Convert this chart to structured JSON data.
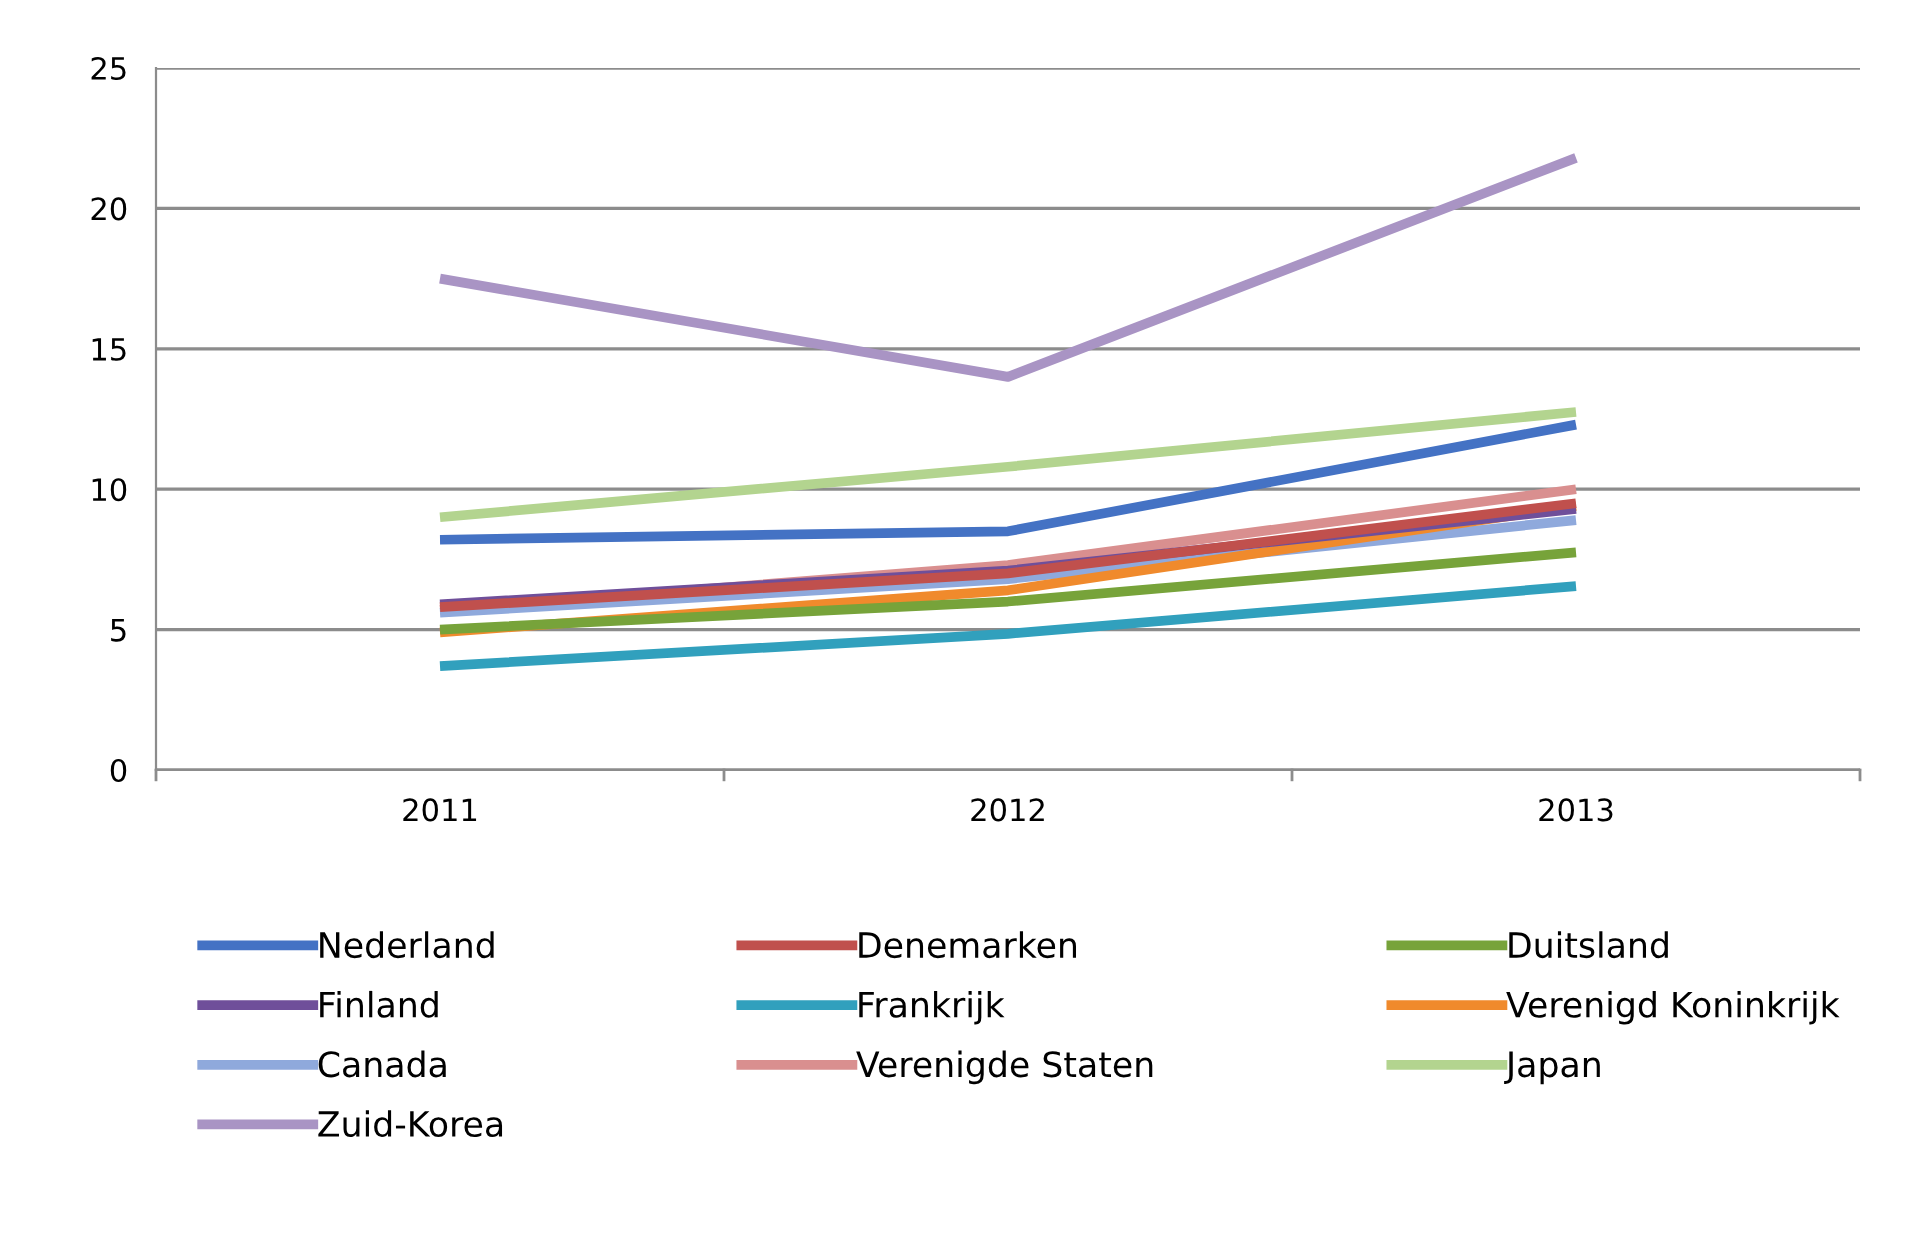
{
  "chart_data": {
    "type": "line",
    "categories": [
      "2011",
      "2012",
      "2013"
    ],
    "series": [
      {
        "name": "Nederland",
        "color": "#4472c4",
        "values": [
          8.2,
          8.5,
          12.3
        ]
      },
      {
        "name": "Denemarken",
        "color": "#c0504d",
        "values": [
          5.8,
          7.0,
          9.5
        ]
      },
      {
        "name": "Duitsland",
        "color": "#77a33a",
        "values": [
          5.0,
          6.0,
          7.75
        ]
      },
      {
        "name": "Finland",
        "color": "#6f4f9a",
        "values": [
          5.9,
          7.1,
          9.3
        ]
      },
      {
        "name": "Frankrijk",
        "color": "#31a0bd",
        "values": [
          3.7,
          4.85,
          6.55
        ]
      },
      {
        "name": "Verenigd Koninkrijk",
        "color": "#f08a2c",
        "values": [
          4.9,
          6.4,
          9.4
        ]
      },
      {
        "name": "Canada",
        "color": "#8fa9dc",
        "values": [
          5.6,
          6.8,
          8.9
        ]
      },
      {
        "name": "Verenigde Staten",
        "color": "#d98f8f",
        "values": [
          5.7,
          7.3,
          10.0
        ]
      },
      {
        "name": "Japan",
        "color": "#b3d48f",
        "values": [
          9.0,
          10.8,
          12.75
        ]
      },
      {
        "name": "Zuid-Korea",
        "color": "#a994c4",
        "values": [
          17.5,
          14.0,
          21.8
        ]
      }
    ],
    "ylim": [
      0,
      25
    ],
    "yticks": [
      0,
      5,
      10,
      15,
      20,
      25
    ],
    "grid": "y",
    "legend": "bottom",
    "marker": "none",
    "line_style": "solid"
  }
}
